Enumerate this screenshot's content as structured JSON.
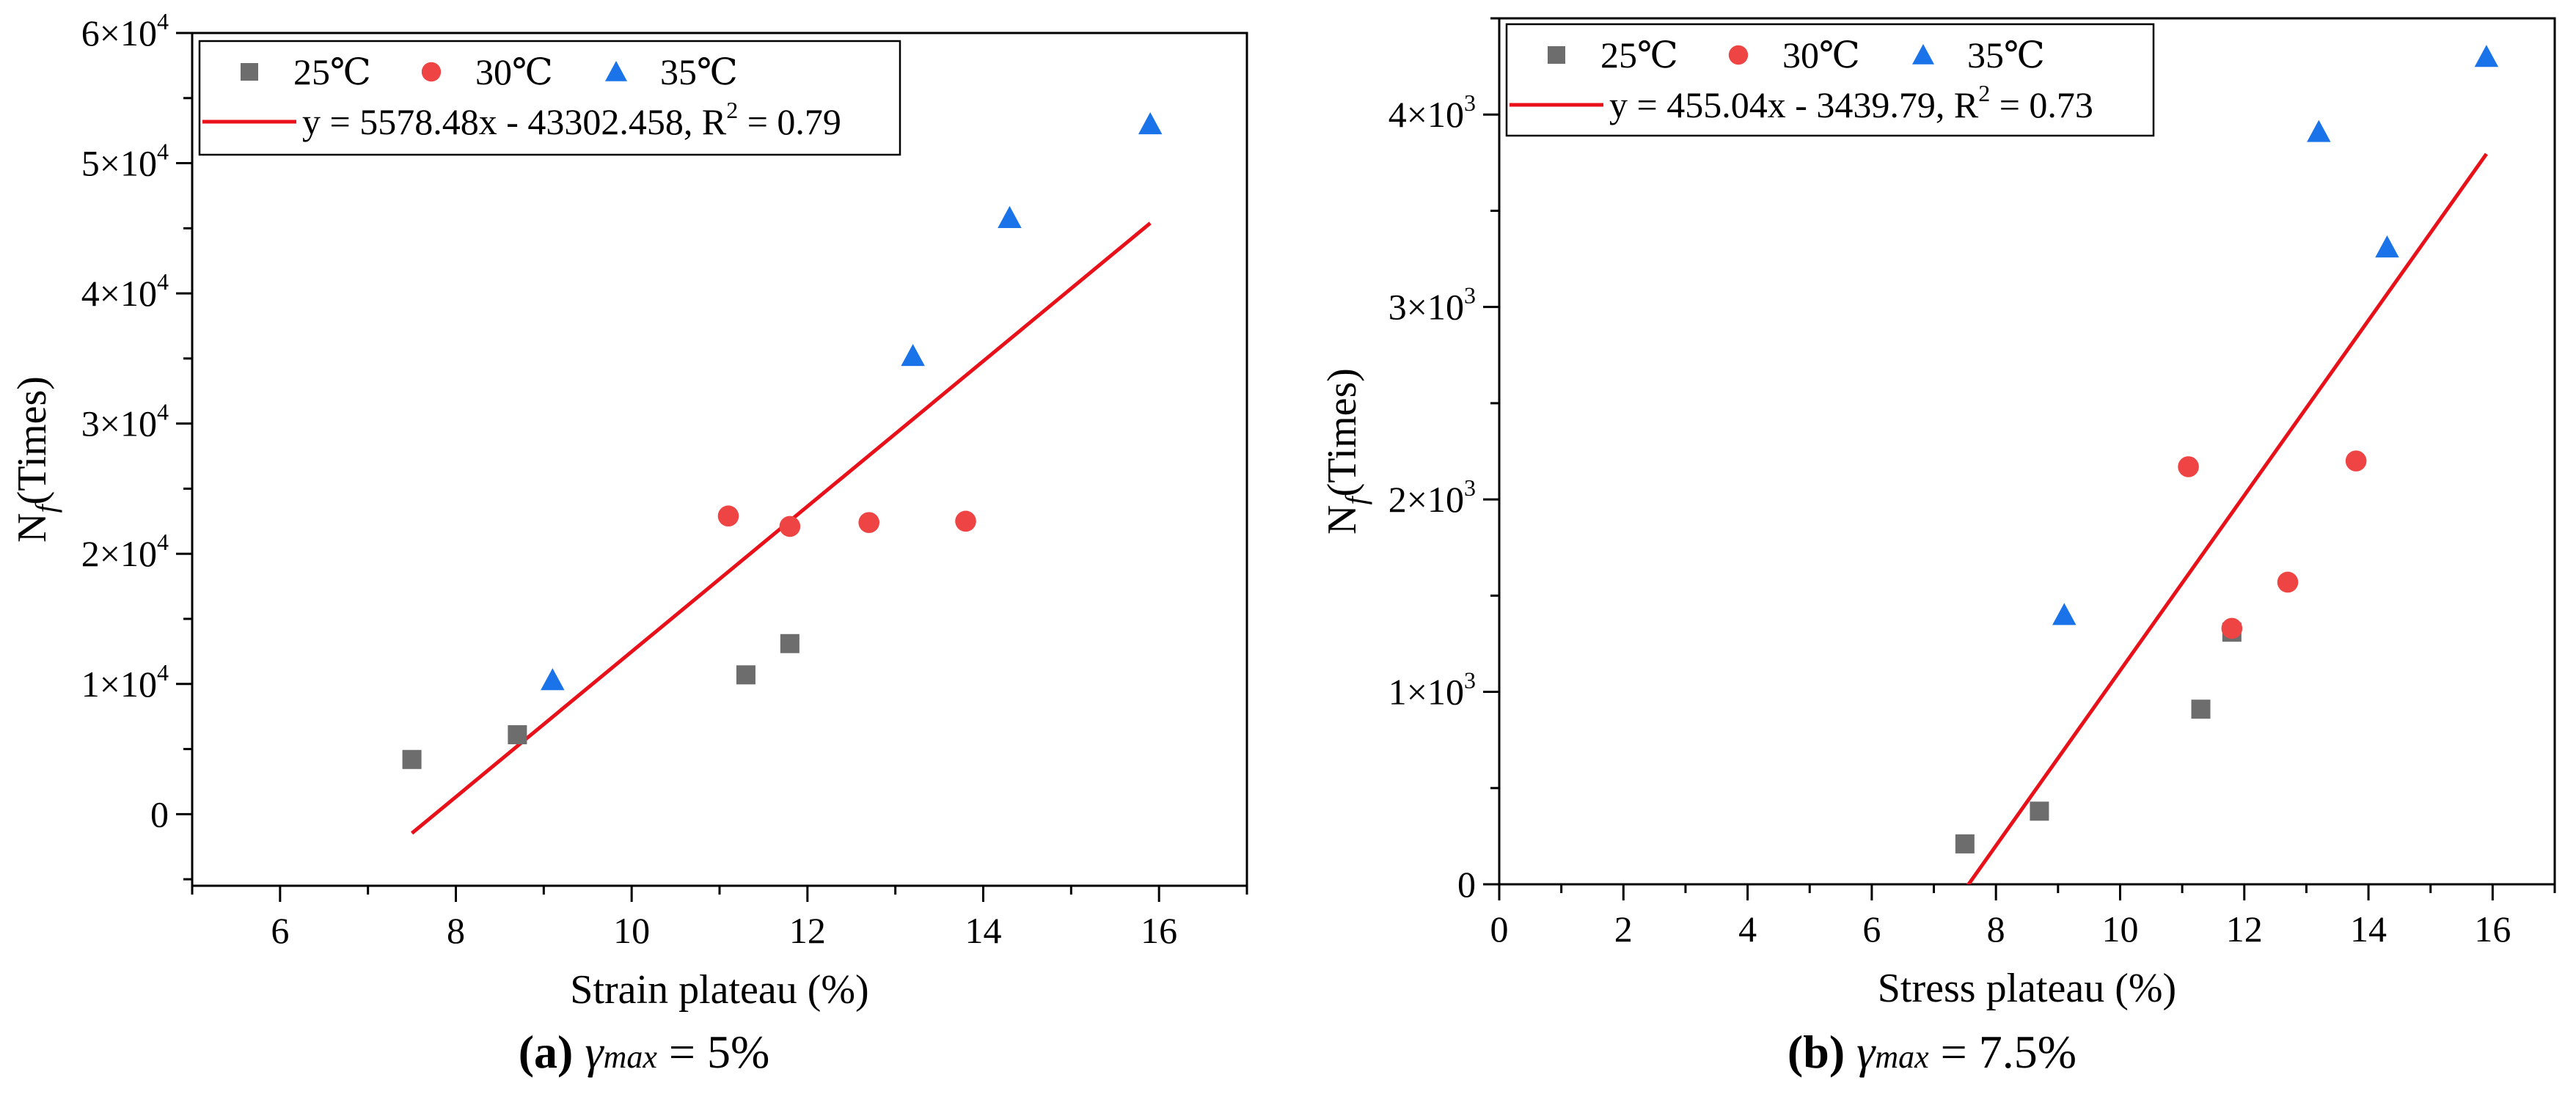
{
  "figures": [
    {
      "caption": {
        "label": "(a)",
        "symbol": "γ",
        "sub": "max",
        "rest": " = 5%"
      },
      "legend": {
        "fit_text": "y = 5578.48x - 43302.458, R",
        "fit_sup": "2",
        "fit_tail": " = 0.79"
      }
    },
    {
      "caption": {
        "label": "(b)",
        "symbol": "γ",
        "sub": "max",
        "rest": " = 7.5%"
      },
      "legend": {
        "fit_text": "y = 455.04x - 3439.79, R",
        "fit_sup": "2",
        "fit_tail": " = 0.73"
      }
    }
  ],
  "colors": {
    "s25": "#6d6d6d",
    "s30": "#ef4444",
    "s35": "#1a73e8",
    "fit": "#e8111a"
  },
  "chart_data": [
    {
      "type": "scatter",
      "title": "",
      "xlabel": "Strain plateau (%)",
      "ylabel": "N",
      "ylabel_sub": "f",
      "ylabel_tail": "(Times)",
      "xlim": [
        5,
        17
      ],
      "ylim": [
        -5500,
        60000
      ],
      "x_ticks": [
        6,
        8,
        10,
        12,
        14,
        16
      ],
      "y_ticks": [
        {
          "value": 0,
          "base": "0",
          "exp": ""
        },
        {
          "value": 10000,
          "base": "1×10",
          "exp": "4"
        },
        {
          "value": 20000,
          "base": "2×10",
          "exp": "4"
        },
        {
          "value": 30000,
          "base": "3×10",
          "exp": "4"
        },
        {
          "value": 40000,
          "base": "4×10",
          "exp": "4"
        },
        {
          "value": 50000,
          "base": "5×10",
          "exp": "4"
        },
        {
          "value": 60000,
          "base": "6×10",
          "exp": "4"
        }
      ],
      "series": [
        {
          "name": "25℃",
          "marker": "square",
          "x": [
            7.5,
            8.7,
            11.3,
            11.8
          ],
          "y": [
            4200,
            6100,
            10700,
            13100
          ]
        },
        {
          "name": "30℃",
          "marker": "circle",
          "x": [
            11.1,
            11.8,
            12.7,
            13.8
          ],
          "y": [
            22900,
            22100,
            22400,
            22500
          ]
        },
        {
          "name": "35℃",
          "marker": "triangle",
          "x": [
            9.1,
            13.2,
            14.3,
            15.9
          ],
          "y": [
            10300,
            35200,
            45800,
            53000
          ]
        }
      ],
      "fit": {
        "slope": 5578.48,
        "intercept": -43302.458,
        "x_range": [
          7.5,
          15.9
        ],
        "r2": 0.79
      },
      "legend_position": "top-left"
    },
    {
      "type": "scatter",
      "title": "",
      "xlabel": "Stress plateau (%)",
      "ylabel": "N",
      "ylabel_sub": "f",
      "ylabel_tail": "(Times)",
      "xlim": [
        0,
        17
      ],
      "ylim": [
        0,
        4500
      ],
      "x_ticks": [
        0,
        2,
        4,
        6,
        8,
        10,
        12,
        14,
        16
      ],
      "y_ticks": [
        {
          "value": 0,
          "base": "0",
          "exp": ""
        },
        {
          "value": 1000,
          "base": "1×10",
          "exp": "3"
        },
        {
          "value": 2000,
          "base": "2×10",
          "exp": "3"
        },
        {
          "value": 3000,
          "base": "3×10",
          "exp": "3"
        },
        {
          "value": 4000,
          "base": "4×10",
          "exp": "3"
        }
      ],
      "series": [
        {
          "name": "25℃",
          "marker": "square",
          "x": [
            7.5,
            8.7,
            11.3,
            11.8
          ],
          "y": [
            210,
            380,
            910,
            1310
          ]
        },
        {
          "name": "30℃",
          "marker": "circle",
          "x": [
            11.1,
            11.8,
            12.7,
            13.8
          ],
          "y": [
            2170,
            1330,
            1570,
            2200
          ]
        },
        {
          "name": "35℃",
          "marker": "triangle",
          "x": [
            9.1,
            13.2,
            14.3,
            15.9
          ],
          "y": [
            1400,
            3910,
            3310,
            4300
          ]
        }
      ],
      "fit": {
        "slope": 455.04,
        "intercept": -3439.79,
        "x_range": [
          7.5,
          15.9
        ],
        "r2": 0.73
      },
      "legend_position": "top-left"
    }
  ]
}
